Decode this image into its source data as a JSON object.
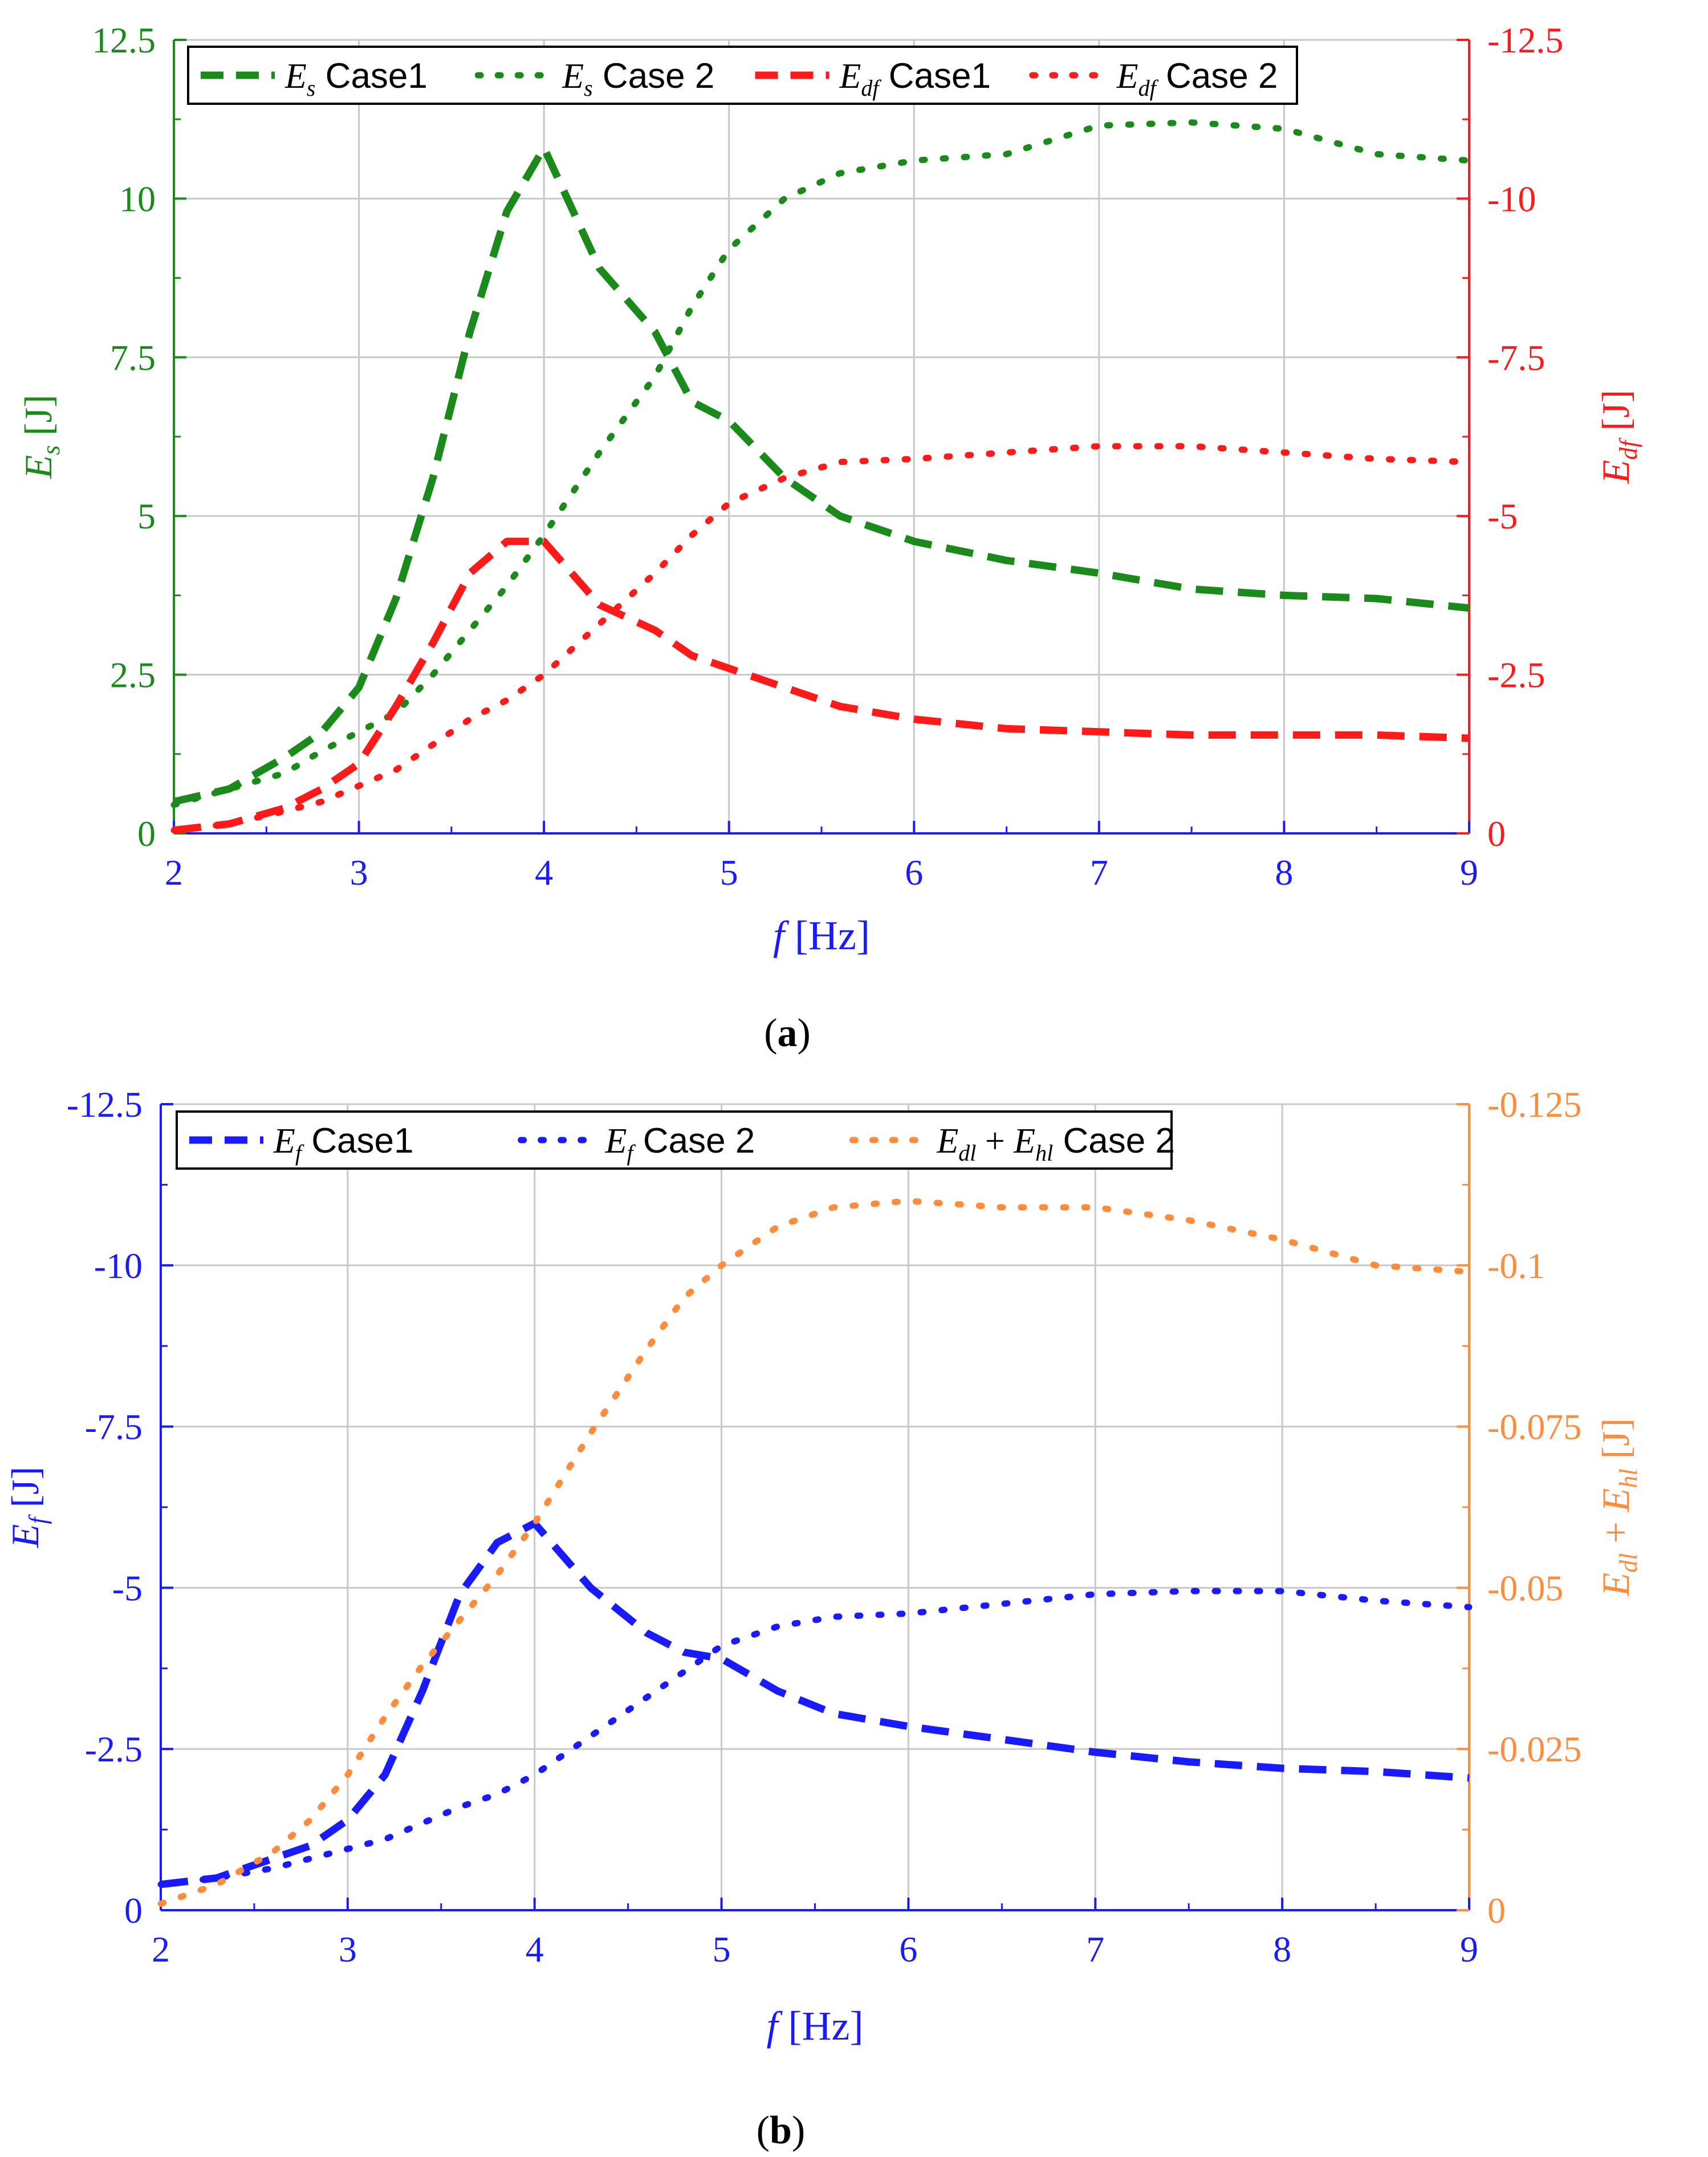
{
  "chart_data": [
    {
      "panel_label": "a",
      "type": "line",
      "xlabel": {
        "var": "f",
        "unit": "[Hz]"
      },
      "x_ticks": [
        "2",
        "3",
        "4",
        "5",
        "6",
        "7",
        "8",
        "9"
      ],
      "xlim": [
        2,
        9
      ],
      "axes": [
        {
          "side": "left",
          "color": "#1a8a1a",
          "ylim": [
            0,
            12.5
          ],
          "ticks": [
            "0",
            "2.5",
            "5",
            "7.5",
            "10",
            "12.5"
          ],
          "ylabel": {
            "base": "E",
            "sub": "s",
            "unit": " [J]"
          }
        },
        {
          "side": "right",
          "color": "#ff1a1a",
          "ylim": [
            0,
            -12.5
          ],
          "ticks": [
            "0",
            "-2.5",
            "-5",
            "-7.5",
            "-10",
            "-12.5"
          ],
          "ylabel": {
            "base": "E",
            "sub": "df",
            "unit": " [J]"
          }
        }
      ],
      "legend": {
        "placement": "top-left",
        "entries": [
          {
            "base": "E",
            "sub": "s",
            "text": "Case1"
          },
          {
            "base": "E",
            "sub": "s",
            "text": "Case 2"
          },
          {
            "base": "E",
            "sub": "df",
            "text": "Case1"
          },
          {
            "base": "E",
            "sub": "df",
            "text": "Case 2"
          }
        ]
      },
      "grid": true,
      "series": [
        {
          "name": "Es Case1",
          "axis": 0,
          "color": "#1a8a1a",
          "style": "dash",
          "x": [
            2.0,
            2.3,
            2.6,
            2.8,
            3.0,
            3.2,
            3.4,
            3.6,
            3.8,
            4.0,
            4.3,
            4.6,
            4.8,
            5.0,
            5.3,
            5.6,
            6.0,
            6.5,
            7.0,
            7.5,
            8.0,
            8.5,
            9.0
          ],
          "y": [
            0.5,
            0.7,
            1.2,
            1.6,
            2.3,
            3.7,
            5.6,
            7.9,
            9.8,
            10.8,
            8.9,
            7.9,
            6.8,
            6.5,
            5.6,
            5.0,
            4.6,
            4.3,
            4.1,
            3.85,
            3.75,
            3.7,
            3.55
          ]
        },
        {
          "name": "Es Case 2",
          "axis": 0,
          "color": "#1a8a1a",
          "style": "dot",
          "x": [
            2.0,
            2.3,
            2.6,
            2.8,
            3.0,
            3.2,
            3.4,
            3.6,
            3.8,
            4.0,
            4.3,
            4.6,
            4.8,
            5.0,
            5.3,
            5.6,
            6.0,
            6.5,
            7.0,
            7.5,
            8.0,
            8.5,
            9.0
          ],
          "y": [
            0.45,
            0.7,
            0.95,
            1.3,
            1.6,
            1.9,
            2.5,
            3.2,
            3.9,
            4.7,
            6.0,
            7.2,
            8.3,
            9.2,
            10.0,
            10.4,
            10.6,
            10.7,
            11.15,
            11.2,
            11.1,
            10.7,
            10.6
          ]
        },
        {
          "name": "Edf Case1",
          "axis": 1,
          "color": "#ff1a1a",
          "style": "dash",
          "x": [
            2.0,
            2.3,
            2.6,
            2.8,
            3.0,
            3.2,
            3.4,
            3.6,
            3.8,
            4.0,
            4.3,
            4.6,
            4.8,
            5.0,
            5.3,
            5.6,
            6.0,
            6.5,
            7.0,
            7.5,
            8.0,
            8.5,
            9.0
          ],
          "y": [
            -0.05,
            -0.15,
            -0.4,
            -0.7,
            -1.1,
            -2.0,
            -3.0,
            -4.1,
            -4.6,
            -4.6,
            -3.6,
            -3.2,
            -2.8,
            -2.6,
            -2.3,
            -2.0,
            -1.8,
            -1.65,
            -1.6,
            -1.55,
            -1.55,
            -1.55,
            -1.5
          ]
        },
        {
          "name": "Edf Case 2",
          "axis": 1,
          "color": "#ff1a1a",
          "style": "dot",
          "x": [
            2.0,
            2.3,
            2.6,
            2.8,
            3.0,
            3.2,
            3.4,
            3.6,
            3.8,
            4.0,
            4.3,
            4.6,
            4.8,
            5.0,
            5.3,
            5.6,
            6.0,
            6.5,
            7.0,
            7.5,
            8.0,
            8.5,
            9.0
          ],
          "y": [
            -0.05,
            -0.15,
            -0.35,
            -0.5,
            -0.75,
            -1.0,
            -1.4,
            -1.8,
            -2.1,
            -2.5,
            -3.3,
            -4.1,
            -4.7,
            -5.2,
            -5.6,
            -5.85,
            -5.9,
            -6.0,
            -6.1,
            -6.1,
            -6.0,
            -5.9,
            -5.85
          ]
        }
      ]
    },
    {
      "panel_label": "b",
      "type": "line",
      "xlabel": {
        "var": "f",
        "unit": "[Hz]"
      },
      "x_ticks": [
        "2",
        "3",
        "4",
        "5",
        "6",
        "7",
        "8",
        "9"
      ],
      "xlim": [
        2,
        9
      ],
      "axes": [
        {
          "side": "left",
          "color": "#1a1aff",
          "ylim": [
            0,
            -12.5
          ],
          "ticks": [
            "0",
            "-2.5",
            "-5",
            "-7.5",
            "-10",
            "-12.5"
          ],
          "ylabel": {
            "base": "E",
            "sub": "f",
            "unit": " [J]"
          }
        },
        {
          "side": "right",
          "color": "#ff8c3c",
          "ylim": [
            0,
            -0.125
          ],
          "ticks": [
            "0",
            "-0.025",
            "-0.05",
            "-0.075",
            "-0.1",
            "-0.125"
          ],
          "ylabel": {
            "base": "E",
            "sub": "dl",
            "mid": " + ",
            "base2": "E",
            "sub2": "hl",
            "unit": " [J]"
          }
        }
      ],
      "legend": {
        "placement": "top-left",
        "entries": [
          {
            "base": "E",
            "sub": "f",
            "text": "Case1"
          },
          {
            "base": "E",
            "sub": "f",
            "text": "Case 2"
          },
          {
            "base": "E",
            "sub": "dl",
            "mid": " + ",
            "base2": "E",
            "sub2": "hl",
            "text": "Case 2"
          }
        ]
      },
      "grid": true,
      "series": [
        {
          "name": "Ef Case1",
          "axis": 0,
          "color": "#1a1aff",
          "style": "dash",
          "x": [
            2.0,
            2.3,
            2.6,
            2.8,
            3.0,
            3.2,
            3.4,
            3.6,
            3.8,
            4.0,
            4.3,
            4.6,
            4.8,
            5.0,
            5.3,
            5.6,
            6.0,
            6.5,
            7.0,
            7.5,
            8.0,
            8.5,
            9.0
          ],
          "y": [
            -0.4,
            -0.5,
            -0.8,
            -1.0,
            -1.4,
            -2.1,
            -3.4,
            -4.9,
            -5.7,
            -6.0,
            -5.0,
            -4.3,
            -4.0,
            -3.9,
            -3.4,
            -3.05,
            -2.85,
            -2.65,
            -2.45,
            -2.3,
            -2.2,
            -2.15,
            -2.05
          ]
        },
        {
          "name": "Ef Case 2",
          "axis": 0,
          "color": "#1a1aff",
          "style": "dot",
          "x": [
            2.0,
            2.3,
            2.6,
            2.8,
            3.0,
            3.2,
            3.4,
            3.6,
            3.8,
            4.0,
            4.3,
            4.6,
            4.8,
            5.0,
            5.3,
            5.6,
            6.0,
            6.5,
            7.0,
            7.5,
            8.0,
            8.5,
            9.0
          ],
          "y": [
            -0.4,
            -0.5,
            -0.65,
            -0.8,
            -0.95,
            -1.1,
            -1.35,
            -1.6,
            -1.8,
            -2.1,
            -2.7,
            -3.3,
            -3.7,
            -4.1,
            -4.4,
            -4.55,
            -4.6,
            -4.75,
            -4.9,
            -4.95,
            -4.95,
            -4.8,
            -4.7
          ]
        },
        {
          "name": "Edl + Ehl Case 2",
          "axis": 1,
          "color": "#ff8c3c",
          "style": "dot",
          "x": [
            2.0,
            2.3,
            2.6,
            2.8,
            3.0,
            3.2,
            3.4,
            3.6,
            3.8,
            4.0,
            4.3,
            4.6,
            4.8,
            5.0,
            5.3,
            5.6,
            6.0,
            6.5,
            7.0,
            7.5,
            8.0,
            8.5,
            9.0
          ],
          "y": [
            -0.001,
            -0.004,
            -0.009,
            -0.014,
            -0.021,
            -0.03,
            -0.038,
            -0.045,
            -0.052,
            -0.06,
            -0.074,
            -0.087,
            -0.095,
            -0.1,
            -0.106,
            -0.109,
            -0.11,
            -0.109,
            -0.109,
            -0.107,
            -0.104,
            -0.1,
            -0.099
          ]
        }
      ]
    }
  ]
}
